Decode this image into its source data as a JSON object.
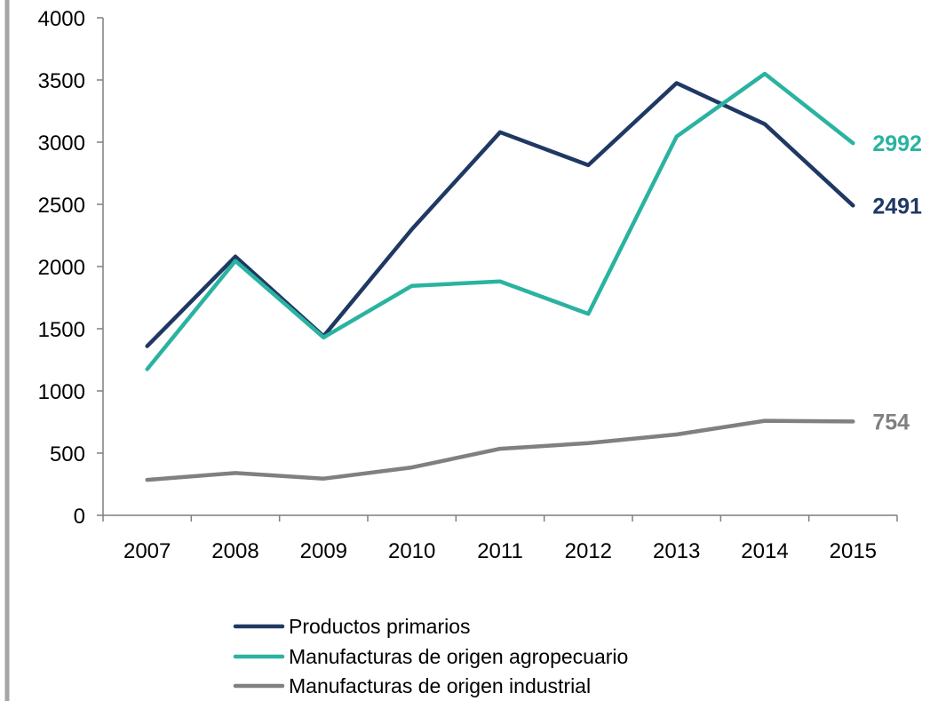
{
  "chart_data": {
    "type": "line",
    "title": "",
    "xlabel": "",
    "ylabel": "",
    "categories": [
      "2007",
      "2008",
      "2009",
      "2010",
      "2011",
      "2012",
      "2013",
      "2014",
      "2015"
    ],
    "ylim": [
      0,
      4000
    ],
    "yticks": [
      0,
      500,
      1000,
      1500,
      2000,
      2500,
      3000,
      3500,
      4000
    ],
    "grid": false,
    "legend_position": "bottom",
    "series": [
      {
        "name": "Productos primarios",
        "color": "#1f3864",
        "values": [
          1360,
          2080,
          1440,
          2300,
          3080,
          2815,
          3475,
          3145,
          2491
        ],
        "end_label": "2491"
      },
      {
        "name": "Manufacturas de origen agropecuario",
        "color": "#2ab3a0",
        "values": [
          1175,
          2045,
          1430,
          1845,
          1880,
          1620,
          3045,
          3550,
          2992
        ],
        "end_label": "2992"
      },
      {
        "name": "Manufacturas de origen industrial",
        "color": "#808080",
        "values": [
          285,
          340,
          295,
          385,
          535,
          580,
          650,
          760,
          754
        ],
        "end_label": "754"
      }
    ]
  }
}
